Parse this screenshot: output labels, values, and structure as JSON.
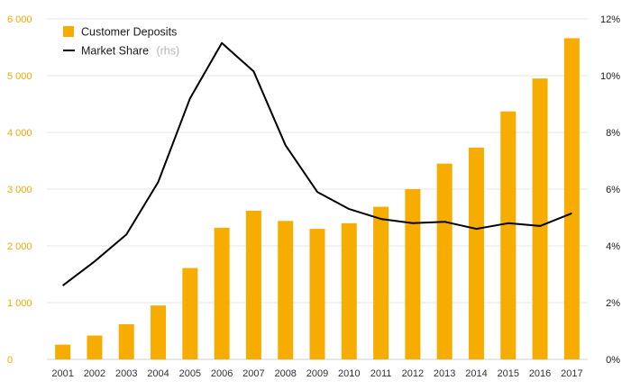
{
  "chart_data": {
    "type": "bar",
    "categories": [
      "2001",
      "2002",
      "2003",
      "2004",
      "2005",
      "2006",
      "2007",
      "2008",
      "2009",
      "2010",
      "2011",
      "2012",
      "2013",
      "2014",
      "2015",
      "2016",
      "2017"
    ],
    "series": [
      {
        "name": "Customer Deposits",
        "type": "bar",
        "axis": "left",
        "color": "#f7ad00",
        "values": [
          260,
          420,
          620,
          950,
          1610,
          2320,
          2620,
          2440,
          2300,
          2400,
          2690,
          3000,
          3450,
          3730,
          4370,
          4950,
          5660
        ]
      },
      {
        "name": "Market Share",
        "name_suffix": "(rhs)",
        "type": "line",
        "axis": "right",
        "color": "#000000",
        "values": [
          2.6,
          3.45,
          4.4,
          6.25,
          9.2,
          11.15,
          10.15,
          7.55,
          5.9,
          5.3,
          4.95,
          4.8,
          4.85,
          4.6,
          4.8,
          4.7,
          5.15
        ]
      }
    ],
    "y_left": {
      "ylim": [
        0,
        6000
      ],
      "ticks": [
        0,
        1000,
        2000,
        3000,
        4000,
        5000,
        6000
      ],
      "tick_labels": [
        "0",
        "1 000",
        "2 000",
        "3 000",
        "4 000",
        "5 000",
        "6 000"
      ],
      "color": "#f0a800"
    },
    "y_right": {
      "ylim": [
        0,
        12
      ],
      "ticks": [
        0,
        2,
        4,
        6,
        8,
        10,
        12
      ],
      "tick_labels": [
        "0%",
        "2%",
        "4%",
        "6%",
        "8%",
        "10%",
        "12%"
      ],
      "color": "#1a1a1a"
    },
    "title": "",
    "xlabel": "",
    "ylabel": "",
    "grid": true,
    "grid_color": "#e6e6e6",
    "legend": {
      "position": "top-left"
    }
  }
}
